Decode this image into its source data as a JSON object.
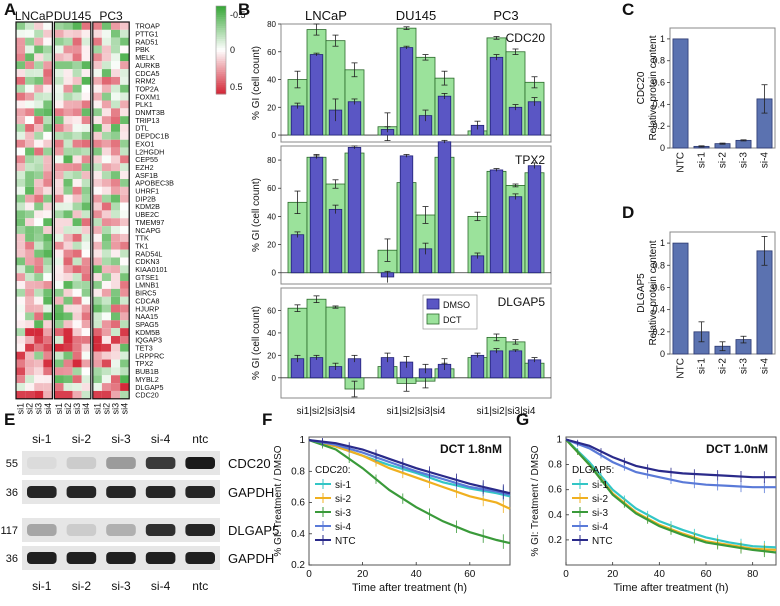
{
  "panel_labels": {
    "A": "A",
    "B": "B",
    "C": "C",
    "D": "D",
    "E": "E",
    "F": "F",
    "G": "G"
  },
  "heatmap": {
    "cell_lines": [
      "LNCaP",
      "DU145",
      "PC3"
    ],
    "si_labels": [
      "si1",
      "si2",
      "si3",
      "si4"
    ],
    "genes": [
      "TROAP",
      "PTTG1",
      "RAD51",
      "PBK",
      "MELK",
      "AURKB",
      "CDCA5",
      "RRM2",
      "TOP2A",
      "FOXM1",
      "PLK1",
      "DNMT3B",
      "TRIP13",
      "DTL",
      "DEPDC1B",
      "EXO1",
      "L2HGDH",
      "CEP55",
      "EZH2",
      "ASF1B",
      "APOBEC3B",
      "UHRF1",
      "DIP2B",
      "KDM2B",
      "UBE2C",
      "TMEM97",
      "NCAPG",
      "TTK",
      "TK1",
      "RAD54L",
      "CDKN3",
      "KIAA0101",
      "GTSE1",
      "LMNB1",
      "BIRC5",
      "CDCA8",
      "HJURP",
      "NAA15",
      "SPAG5",
      "KDM5B",
      "IQGAP3",
      "TET3",
      "LRPPRC",
      "TPX2",
      "BUB1B",
      "MYBL2",
      "DLGAP5",
      "CDC20"
    ],
    "colorbar_labels": [
      "-0.5",
      "0",
      "0.5"
    ],
    "colors": {
      "low": "#3aa83a",
      "mid": "#ffffff",
      "high": "#d42a3a"
    }
  },
  "chart_data": [
    {
      "type": "bar",
      "panel": "B",
      "title": "CDC20",
      "ylabel": "% GI (cell count)",
      "ylim": [
        -5,
        80
      ],
      "yticks": [
        0,
        20,
        40,
        60,
        80
      ],
      "groups": [
        "LNCaP",
        "DU145",
        "PC3"
      ],
      "categories": [
        "si1",
        "si2",
        "si3",
        "si4"
      ],
      "xlabel_groups": [
        "si1|si2|si3|si4",
        "si1|si2|si3|si4",
        "si1|si2|si3|si4"
      ],
      "series": [
        {
          "name": "DCT",
          "values": [
            [
              40,
              76,
              68,
              47
            ],
            [
              6,
              77,
              56,
              41
            ],
            [
              3,
              70,
              60,
              38
            ]
          ],
          "err": [
            [
              6,
              4,
              4,
              5
            ],
            [
              10,
              1,
              2,
              5
            ],
            [
              3,
              1,
              2,
              4
            ]
          ]
        },
        {
          "name": "DMSO",
          "values": [
            [
              21,
              58,
              18,
              24
            ],
            [
              4,
              63,
              14,
              28
            ],
            [
              7,
              56,
              20,
              24
            ]
          ],
          "err": [
            [
              2,
              1,
              8,
              2
            ],
            [
              2,
              1,
              4,
              2
            ],
            [
              3,
              2,
              2,
              3
            ]
          ]
        }
      ]
    },
    {
      "type": "bar",
      "panel": "B",
      "title": "TPX2",
      "ylabel": "% GI (cell count)",
      "ylim": [
        -8,
        90
      ],
      "yticks": [
        0,
        20,
        40,
        60,
        80
      ],
      "groups": [
        "LNCaP",
        "DU145",
        "PC3"
      ],
      "categories": [
        "si1",
        "si2",
        "si3",
        "si4"
      ],
      "series": [
        {
          "name": "DCT",
          "values": [
            [
              50,
              82,
              63,
              85
            ],
            [
              16,
              64,
              41,
              82
            ],
            [
              40,
              72,
              62,
              71
            ]
          ],
          "err": [
            [
              8,
              2,
              3,
              2
            ],
            [
              8,
              5,
              6,
              1
            ],
            [
              3,
              1,
              1,
              2
            ]
          ]
        },
        {
          "name": "DMSO",
          "values": [
            [
              27,
              82,
              45,
              89
            ],
            [
              -3,
              83,
              17,
              93
            ],
            [
              12,
              73,
              54,
              76
            ]
          ],
          "err": [
            [
              2,
              1,
              3,
              1
            ],
            [
              4,
              1,
              4,
              1
            ],
            [
              2,
              1,
              2,
              2
            ]
          ]
        }
      ]
    },
    {
      "type": "bar",
      "panel": "B",
      "title": "DLGAP5",
      "ylabel": "% GI (cell count)",
      "ylim": [
        -18,
        80
      ],
      "yticks": [
        0,
        20,
        40,
        60
      ],
      "groups": [
        "LNCaP",
        "DU145",
        "PC3"
      ],
      "categories": [
        "si1",
        "si2",
        "si3",
        "si4"
      ],
      "xlabels": [
        "si1|si2|si3|si4",
        "si1|si2|si3|si4",
        "si1|si2|si3|si4"
      ],
      "legend": [
        "DMSO",
        "DCT"
      ],
      "series": [
        {
          "name": "DCT",
          "values": [
            [
              62,
              70,
              63,
              -10
            ],
            [
              10,
              -5,
              -3,
              8
            ],
            [
              18,
              36,
              32,
              13
            ]
          ],
          "err": [
            [
              3,
              3,
              1,
              7
            ],
            [
              5,
              7,
              6,
              5
            ],
            [
              2,
              3,
              2,
              2
            ]
          ]
        },
        {
          "name": "DMSO",
          "values": [
            [
              17,
              18,
              10,
              17
            ],
            [
              18,
              14,
              8,
              12
            ],
            [
              20,
              24,
              24,
              16
            ]
          ],
          "err": [
            [
              3,
              2,
              3,
              3
            ],
            [
              4,
              5,
              4,
              5
            ],
            [
              2,
              2,
              1,
              2
            ]
          ]
        }
      ]
    },
    {
      "type": "bar",
      "panel": "C",
      "title": "CDC20",
      "ylabel": "Relative protein content",
      "ylim": [
        0,
        1.1
      ],
      "yticks": [
        0,
        0.2,
        0.4,
        0.6,
        0.8,
        1
      ],
      "categories": [
        "NTC",
        "si-1",
        "si-2",
        "si-3",
        "si-4"
      ],
      "values": [
        1.0,
        0.015,
        0.04,
        0.07,
        0.45
      ],
      "err": [
        0,
        0.005,
        0.005,
        0.005,
        0.13
      ]
    },
    {
      "type": "bar",
      "panel": "D",
      "title": "DLGAP5",
      "ylabel": "Relative protein content",
      "ylim": [
        0,
        1.1
      ],
      "yticks": [
        0,
        0.2,
        0.4,
        0.6,
        0.8,
        1
      ],
      "categories": [
        "NTC",
        "si-1",
        "si-2",
        "si-3",
        "si-4"
      ],
      "values": [
        1.0,
        0.2,
        0.07,
        0.13,
        0.93
      ],
      "err": [
        0,
        0.09,
        0.04,
        0.03,
        0.13
      ]
    },
    {
      "type": "line",
      "panel": "F",
      "title": "DCT 1.8nM",
      "ylabel": "% GI: Treatment / DMSO",
      "xlabel": "Time after treatment (h)",
      "xlim": [
        0,
        75
      ],
      "ylim": [
        0.2,
        1.02
      ],
      "xticks": [
        0,
        20,
        40,
        60
      ],
      "yticks": [
        0.2,
        0.4,
        0.6,
        0.8,
        1
      ],
      "legend_title": "CDC20:",
      "x": [
        0,
        10,
        20,
        30,
        40,
        50,
        60,
        70,
        75
      ],
      "series": [
        {
          "name": "si-1",
          "color": "#33c6c6",
          "values": [
            1.0,
            0.96,
            0.9,
            0.84,
            0.79,
            0.73,
            0.69,
            0.66,
            0.64
          ]
        },
        {
          "name": "si-2",
          "color": "#f0b020",
          "values": [
            1.0,
            0.96,
            0.9,
            0.82,
            0.76,
            0.7,
            0.64,
            0.6,
            0.56
          ]
        },
        {
          "name": "si-3",
          "color": "#3a9a3a",
          "values": [
            1.0,
            0.94,
            0.82,
            0.68,
            0.57,
            0.48,
            0.41,
            0.36,
            0.34
          ]
        },
        {
          "name": "si-4",
          "color": "#5a7ad8",
          "values": [
            1.0,
            0.97,
            0.92,
            0.86,
            0.8,
            0.75,
            0.7,
            0.67,
            0.65
          ]
        },
        {
          "name": "NTC",
          "color": "#2a2a8a",
          "values": [
            1.0,
            0.98,
            0.94,
            0.88,
            0.82,
            0.77,
            0.72,
            0.68,
            0.66
          ]
        }
      ]
    },
    {
      "type": "line",
      "panel": "G",
      "title": "DCT 1.0nM",
      "ylabel": "% GI: Treatment / DMSO",
      "xlabel": "Time after treatment (h)",
      "xlim": [
        0,
        90
      ],
      "ylim": [
        0,
        1.02
      ],
      "xticks": [
        0,
        20,
        40,
        60,
        80
      ],
      "yticks": [
        0.2,
        0.4,
        0.6,
        0.8,
        1
      ],
      "legend_title": "DLGAP5:",
      "x": [
        0,
        10,
        20,
        30,
        40,
        50,
        60,
        70,
        80,
        90
      ],
      "series": [
        {
          "name": "si-1",
          "color": "#33c6c6",
          "values": [
            1.0,
            0.82,
            0.6,
            0.45,
            0.35,
            0.28,
            0.22,
            0.18,
            0.15,
            0.14
          ]
        },
        {
          "name": "si-2",
          "color": "#f0b020",
          "values": [
            1.0,
            0.8,
            0.57,
            0.42,
            0.32,
            0.25,
            0.19,
            0.16,
            0.13,
            0.12
          ]
        },
        {
          "name": "si-3",
          "color": "#3a9a3a",
          "values": [
            1.0,
            0.8,
            0.56,
            0.41,
            0.31,
            0.24,
            0.18,
            0.15,
            0.12,
            0.1
          ]
        },
        {
          "name": "si-4",
          "color": "#5a7ad8",
          "values": [
            1.0,
            0.93,
            0.82,
            0.74,
            0.7,
            0.66,
            0.64,
            0.63,
            0.62,
            0.62
          ]
        },
        {
          "name": "NTC",
          "color": "#2a2a8a",
          "values": [
            1.0,
            0.95,
            0.86,
            0.79,
            0.75,
            0.73,
            0.72,
            0.71,
            0.7,
            0.7
          ]
        }
      ]
    }
  ],
  "western": {
    "lanes": [
      "si-1",
      "si-2",
      "si-3",
      "si-4",
      "ntc"
    ],
    "rows": [
      {
        "mw": "55",
        "label": "CDC20",
        "intensity": [
          0.05,
          0.12,
          0.35,
          0.8,
          0.95
        ]
      },
      {
        "mw": "36",
        "label": "GAPDH",
        "intensity": [
          0.9,
          0.9,
          0.9,
          0.9,
          0.9
        ]
      },
      {
        "mw": "117",
        "label": "DLGAP5",
        "intensity": [
          0.3,
          0.12,
          0.25,
          0.85,
          0.9
        ]
      },
      {
        "mw": "36",
        "label": "GAPDH",
        "intensity": [
          0.92,
          0.92,
          0.92,
          0.92,
          0.92
        ]
      }
    ]
  }
}
